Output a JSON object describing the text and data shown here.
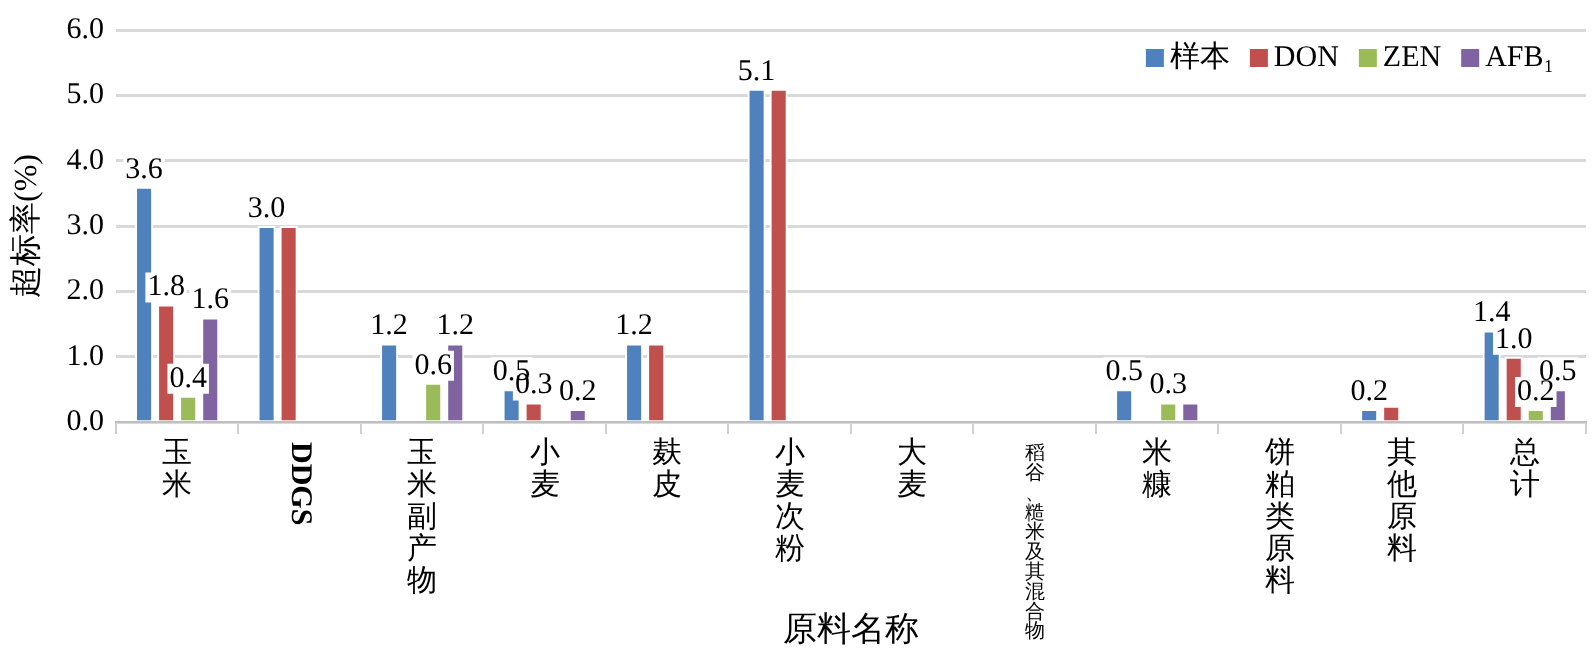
{
  "chart_data": {
    "type": "bar",
    "xlabel": "原料名称",
    "ylabel": "超标率(%)",
    "categories": [
      "玉米",
      "DDGS",
      "玉米副产物",
      "小麦",
      "麸皮",
      "小麦次粉",
      "大麦",
      "稻谷、糙米及其混合物",
      "米糠",
      "饼粕类原料",
      "其他原料",
      "总计"
    ],
    "series": [
      {
        "name": "样本",
        "color": "#4f81bd",
        "values": [
          3.6,
          3.0,
          1.2,
          0.5,
          1.2,
          5.1,
          0,
          0,
          0.5,
          0,
          0.2,
          1.4
        ],
        "value_labels": [
          "3.6",
          "3.0",
          "1.2",
          "0.5",
          "1.2",
          "5.1",
          null,
          null,
          "0.5",
          null,
          "0.2",
          "1.4"
        ]
      },
      {
        "name": "DON",
        "color": "#c0504d",
        "values": [
          1.8,
          3.0,
          0,
          0.3,
          1.2,
          5.1,
          0,
          0,
          0,
          0,
          0.25,
          1.0
        ],
        "value_labels": [
          "1.8",
          null,
          null,
          "0.3",
          null,
          null,
          null,
          null,
          null,
          null,
          null,
          "1.0"
        ]
      },
      {
        "name": "ZEN",
        "color": "#9bbb59",
        "values": [
          0.4,
          0,
          0.6,
          0,
          0,
          0,
          0,
          0,
          0.3,
          0,
          0,
          0.2
        ],
        "value_labels": [
          "0.4",
          null,
          "0.6",
          null,
          null,
          null,
          null,
          null,
          "0.3",
          null,
          null,
          "0.2"
        ]
      },
      {
        "name": "AFB₁",
        "color": "#8064a2",
        "values": [
          1.6,
          0,
          1.2,
          0.2,
          0,
          0,
          0,
          0,
          0.3,
          0,
          0,
          0.5
        ],
        "value_labels": [
          "1.6",
          null,
          "1.2",
          "0.2",
          null,
          null,
          null,
          null,
          null,
          null,
          null,
          "0.5"
        ]
      }
    ],
    "ylim": [
      0,
      6
    ],
    "yticks": [
      {
        "value": 0,
        "label": "0.0"
      },
      {
        "value": 1,
        "label": "1.0"
      },
      {
        "value": 2,
        "label": "2.0"
      },
      {
        "value": 3,
        "label": "3.0"
      },
      {
        "value": 4,
        "label": "4.0"
      },
      {
        "value": 5,
        "label": "5.0"
      },
      {
        "value": 6,
        "label": "6.0"
      }
    ],
    "grid": "y",
    "legend": "top right"
  }
}
